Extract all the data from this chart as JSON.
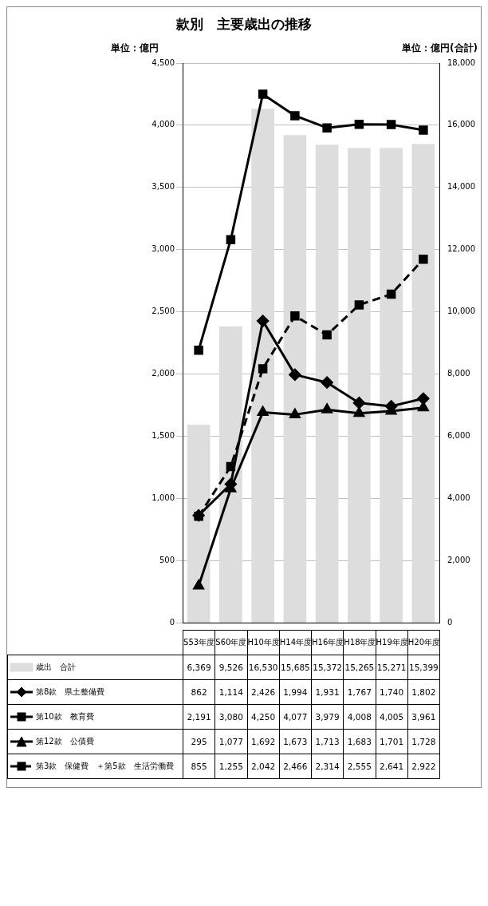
{
  "chart_data": {
    "type": "line",
    "title": "款別　主要歳出の推移",
    "annotations": [
      "単位：億円",
      "単位：億円(合計)"
    ],
    "categories": [
      "S53年度",
      "S60年度",
      "H10年度",
      "H14年度",
      "H16年度",
      "H18年度",
      "H19年度",
      "H20年度"
    ],
    "series": [
      {
        "name": "歳出　合計",
        "type": "bar",
        "axis": "y2",
        "color": "#dddddd",
        "values": [
          6369,
          9526,
          16530,
          15685,
          15372,
          15265,
          15271,
          15399
        ],
        "value_labels": [
          "6,369",
          "9,526",
          "16,530",
          "15,685",
          "15,372",
          "15,265",
          "15,271",
          "15,399"
        ]
      },
      {
        "name": "第8款　県土整備費",
        "marker": "diamond",
        "line_style": "solid",
        "color": "#000000",
        "values": [
          862,
          1114,
          2426,
          1994,
          1931,
          1767,
          1740,
          1802
        ],
        "value_labels": [
          "862",
          "1,114",
          "2,426",
          "1,994",
          "1,931",
          "1,767",
          "1,740",
          "1,802"
        ]
      },
      {
        "name": "第10款　教育費",
        "marker": "square",
        "line_style": "solid",
        "color": "#000000",
        "values": [
          2191,
          3080,
          4250,
          4077,
          3979,
          4008,
          4005,
          3961
        ],
        "value_labels": [
          "2,191",
          "3,080",
          "4,250",
          "4,077",
          "3,979",
          "4,008",
          "4,005",
          "3,961"
        ]
      },
      {
        "name": "第12款　公債費",
        "marker": "triangle",
        "line_style": "solid",
        "color": "#000000",
        "values": [
          295,
          1077,
          1692,
          1673,
          1713,
          1683,
          1701,
          1728
        ],
        "value_labels": [
          "295",
          "1,077",
          "1,692",
          "1,673",
          "1,713",
          "1,683",
          "1,701",
          "1,728"
        ]
      },
      {
        "name": "第3款　保健費　＋第5款　生活労働費",
        "marker": "square",
        "line_style": "dashed",
        "color": "#000000",
        "values": [
          855,
          1255,
          2042,
          2466,
          2314,
          2555,
          2641,
          2922
        ],
        "value_labels": [
          "855",
          "1,255",
          "2,042",
          "2,466",
          "2,314",
          "2,555",
          "2,641",
          "2,922"
        ]
      }
    ],
    "ylim": [
      0,
      4500
    ],
    "yticks": [
      0,
      500,
      {
        "value": 1000,
        "label": "1,000"
      },
      {
        "value": 1500,
        "label": "1,500"
      },
      {
        "value": 2000,
        "label": "2,000"
      },
      {
        "value": 2500,
        "label": "2,500"
      },
      {
        "value": 3000,
        "label": "3,000"
      },
      {
        "value": 3500,
        "label": "3,500"
      },
      {
        "value": 4000,
        "label": "4,000"
      },
      {
        "value": 4500,
        "label": "4,500"
      }
    ],
    "y2lim": [
      0,
      18000
    ],
    "y2ticks": [
      0,
      {
        "value": 2000,
        "label": "2,000"
      },
      {
        "value": 4000,
        "label": "4,000"
      },
      {
        "value": 6000,
        "label": "6,000"
      },
      {
        "value": 8000,
        "label": "8,000"
      },
      {
        "value": 10000,
        "label": "10,000"
      },
      {
        "value": 12000,
        "label": "12,000"
      },
      {
        "value": 14000,
        "label": "14,000"
      },
      {
        "value": 16000,
        "label": "16,000"
      },
      {
        "value": 18000,
        "label": "18,000"
      }
    ],
    "grid": "y",
    "legend": "bottom"
  }
}
